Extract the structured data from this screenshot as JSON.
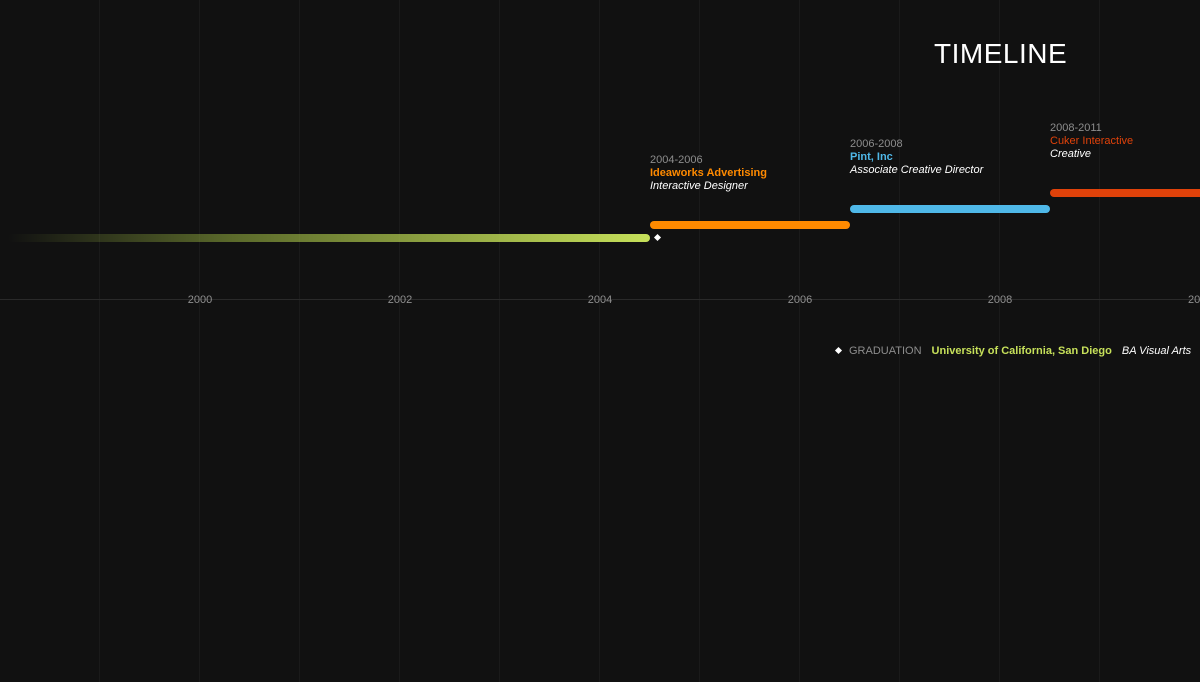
{
  "title": "TIMELINE",
  "axis": {
    "ticks": [
      "2000",
      "2002",
      "2004",
      "2006",
      "2008",
      "20"
    ]
  },
  "jobs": [
    {
      "years": "2004-2006",
      "company": "Ideaworks Advertising",
      "role": "Interactive Designer",
      "color": "#ff8a00",
      "start_year": 2004.5,
      "end_year": 2006.5
    },
    {
      "years": "2006-2008",
      "company": "Pint, Inc",
      "role": "Associate Creative Director",
      "color": "#4fb8e8",
      "start_year": 2006.5,
      "end_year": 2008.5
    },
    {
      "years": "2008-2011",
      "company": "Cuker Interactive",
      "role": "Creative",
      "color": "#e0420a",
      "start_year": 2008.5,
      "end_year": 2011
    }
  ],
  "education": {
    "color": "#c6e05a",
    "end_year": 2004.5,
    "graduation_year": 2004.5
  },
  "legend": {
    "label": "GRADUATION",
    "school": "University of California, San Diego",
    "degree": "BA Visual Arts"
  }
}
